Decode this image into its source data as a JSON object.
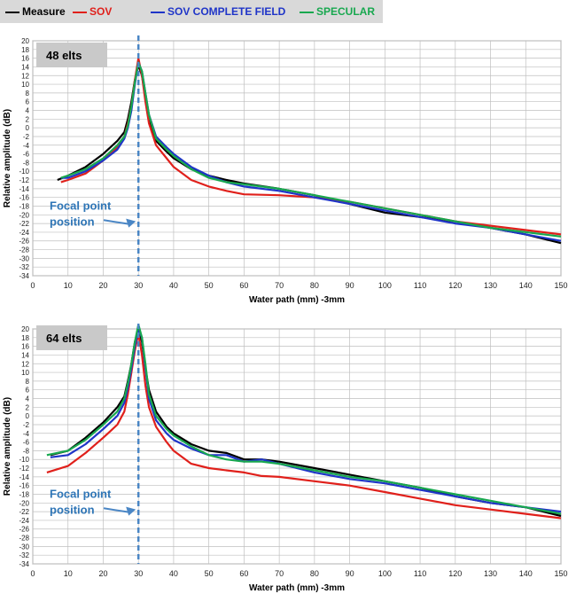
{
  "legend": {
    "items": [
      {
        "label": "Measure",
        "color": "#000000"
      },
      {
        "label": "SOV",
        "color": "#e0201b"
      },
      {
        "label": "SOV COMPLETE FIELD",
        "color": "#1f35c8"
      },
      {
        "label": "SPECULAR",
        "color": "#18a84f"
      }
    ]
  },
  "chart_data": [
    {
      "type": "line",
      "panel_label": "48 elts",
      "xlabel": "Water path (mm) -3mm",
      "ylabel": "Relative amplitude (dB)",
      "xlim": [
        0,
        150
      ],
      "ylim": [
        -34,
        20
      ],
      "x_ticks": [
        0,
        10,
        20,
        30,
        40,
        50,
        60,
        70,
        80,
        90,
        100,
        110,
        120,
        130,
        140,
        150
      ],
      "y_ticks": [
        -34,
        -32,
        -30,
        -28,
        -26,
        -24,
        -22,
        -20,
        -18,
        -16,
        -14,
        -12,
        -10,
        -8,
        -6,
        -4,
        -2,
        0,
        2,
        4,
        6,
        8,
        10,
        12,
        14,
        16,
        18,
        20
      ],
      "grid": true,
      "annotation": {
        "line1": "Focal point",
        "line2": "position",
        "x": 30
      },
      "series": [
        {
          "name": "Measure",
          "color": "#000000",
          "x": [
            7,
            10,
            15,
            20,
            24,
            26,
            27,
            28,
            29,
            30,
            31,
            32,
            33,
            35,
            38,
            40,
            45,
            50,
            55,
            60,
            70,
            80,
            90,
            100,
            110,
            120,
            130,
            140,
            150
          ],
          "y": [
            -12,
            -11,
            -9,
            -6,
            -3,
            -1,
            2,
            6,
            11,
            14.5,
            12,
            7,
            2,
            -3,
            -5.5,
            -7,
            -9.5,
            -11,
            -12,
            -12.8,
            -14,
            -15.5,
            -17.5,
            -19.5,
            -20.5,
            -21.5,
            -23,
            -24.5,
            -26.5
          ]
        },
        {
          "name": "SOV",
          "color": "#e0201b",
          "x": [
            8,
            10,
            15,
            20,
            24,
            26,
            27,
            28,
            29,
            30,
            31,
            32,
            33,
            35,
            38,
            40,
            45,
            50,
            55,
            60,
            70,
            80,
            90,
            100,
            110,
            120,
            130,
            140,
            150
          ],
          "y": [
            -12.5,
            -12,
            -10.5,
            -7.5,
            -4.5,
            -2,
            1,
            5,
            11,
            16,
            12,
            6,
            1,
            -4,
            -7,
            -9,
            -12,
            -13.5,
            -14.5,
            -15.3,
            -15.5,
            -16,
            -17,
            -18.5,
            -20,
            -21.5,
            -22.5,
            -23.5,
            -24.5
          ]
        },
        {
          "name": "SOV COMPLETE FIELD",
          "color": "#1f35c8",
          "x": [
            8,
            10,
            15,
            20,
            24,
            26,
            27,
            28,
            29,
            30,
            31,
            32,
            33,
            35,
            38,
            40,
            45,
            50,
            55,
            60,
            70,
            80,
            90,
            100,
            110,
            120,
            130,
            140,
            150
          ],
          "y": [
            -11.5,
            -11.5,
            -10,
            -7.5,
            -5,
            -2.5,
            0,
            4,
            10,
            15,
            13,
            8,
            3,
            -2,
            -4.5,
            -6,
            -9,
            -11,
            -12.5,
            -13.5,
            -14.5,
            -16,
            -17.5,
            -19,
            -20.5,
            -22,
            -23,
            -24.5,
            -26
          ]
        },
        {
          "name": "SPECULAR",
          "color": "#18a84f",
          "x": [
            8,
            10,
            15,
            20,
            24,
            26,
            27,
            28,
            29,
            30,
            31,
            32,
            33,
            35,
            38,
            40,
            45,
            50,
            55,
            60,
            70,
            80,
            90,
            100,
            110,
            120,
            130,
            140,
            150
          ],
          "y": [
            -11.5,
            -11,
            -9.5,
            -7,
            -4,
            -2,
            0.5,
            5,
            10.5,
            15,
            13,
            8,
            3,
            -2.5,
            -5,
            -6.5,
            -9.5,
            -11.5,
            -12.5,
            -13,
            -14,
            -15.5,
            -17,
            -18.5,
            -20,
            -21.5,
            -23,
            -24,
            -25
          ]
        }
      ]
    },
    {
      "type": "line",
      "panel_label": "64 elts",
      "xlabel": "Water path (mm) -3mm",
      "ylabel": "Relative amplitude (dB)",
      "xlim": [
        0,
        150
      ],
      "ylim": [
        -34,
        20
      ],
      "x_ticks": [
        0,
        10,
        20,
        30,
        40,
        50,
        60,
        70,
        80,
        90,
        100,
        110,
        120,
        130,
        140,
        150
      ],
      "y_ticks": [
        -34,
        -32,
        -30,
        -28,
        -26,
        -24,
        -22,
        -20,
        -18,
        -16,
        -14,
        -12,
        -10,
        -8,
        -6,
        -4,
        -2,
        0,
        2,
        4,
        6,
        8,
        10,
        12,
        14,
        16,
        18,
        20
      ],
      "grid": true,
      "annotation": {
        "line1": "Focal point",
        "line2": "position",
        "x": 30
      },
      "series": [
        {
          "name": "Measure",
          "color": "#000000",
          "x": [
            5,
            10,
            15,
            20,
            24,
            26,
            27,
            28,
            29,
            30,
            31,
            32,
            33,
            35,
            38,
            40,
            45,
            50,
            55,
            60,
            65,
            70,
            80,
            90,
            100,
            110,
            120,
            130,
            140,
            150
          ],
          "y": [
            -9,
            -8,
            -5,
            -1.5,
            2,
            4.5,
            8,
            12,
            17,
            20,
            17,
            11,
            6,
            1,
            -2.5,
            -4,
            -6.5,
            -8,
            -8.5,
            -10,
            -10,
            -10.5,
            -12,
            -13.5,
            -15,
            -16.5,
            -18.5,
            -20,
            -21,
            -23
          ]
        },
        {
          "name": "SOV",
          "color": "#e0201b",
          "x": [
            4,
            10,
            15,
            20,
            24,
            26,
            27,
            28,
            29,
            30,
            31,
            32,
            33,
            35,
            38,
            40,
            45,
            50,
            55,
            60,
            65,
            70,
            80,
            90,
            100,
            110,
            120,
            130,
            140,
            150
          ],
          "y": [
            -13,
            -11.5,
            -8.5,
            -5,
            -2,
            1,
            5,
            10,
            15,
            19,
            14,
            7,
            2,
            -2.5,
            -6,
            -8,
            -11,
            -12,
            -12.5,
            -13,
            -13.8,
            -14,
            -15,
            -16,
            -17.5,
            -19,
            -20.5,
            -21.5,
            -22.5,
            -23.5
          ]
        },
        {
          "name": "SOV COMPLETE FIELD",
          "color": "#1f35c8",
          "x": [
            5,
            10,
            15,
            20,
            24,
            26,
            27,
            28,
            29,
            30,
            31,
            32,
            33,
            35,
            38,
            40,
            45,
            50,
            55,
            60,
            65,
            70,
            80,
            90,
            100,
            110,
            120,
            130,
            140,
            150
          ],
          "y": [
            -9.5,
            -9,
            -6.5,
            -3,
            0,
            3,
            6.5,
            11,
            16,
            20,
            18,
            11,
            4,
            -1,
            -4,
            -5.5,
            -7.5,
            -9,
            -9,
            -10.5,
            -10,
            -11,
            -13,
            -14.5,
            -15.5,
            -17,
            -18.5,
            -20,
            -21,
            -22
          ]
        },
        {
          "name": "SPECULAR",
          "color": "#18a84f",
          "x": [
            4,
            10,
            15,
            20,
            24,
            26,
            27,
            28,
            29,
            30,
            31,
            32,
            33,
            35,
            38,
            40,
            45,
            50,
            55,
            60,
            65,
            70,
            80,
            90,
            100,
            110,
            120,
            130,
            140,
            150
          ],
          "y": [
            -9,
            -8,
            -5.5,
            -2,
            1,
            4,
            7.5,
            12,
            17,
            21,
            18,
            12,
            5,
            0,
            -3,
            -4.5,
            -7,
            -9,
            -10,
            -10.5,
            -10.5,
            -11,
            -12.5,
            -14,
            -15,
            -16.5,
            -18,
            -19.5,
            -21,
            -22.5
          ]
        }
      ]
    }
  ]
}
